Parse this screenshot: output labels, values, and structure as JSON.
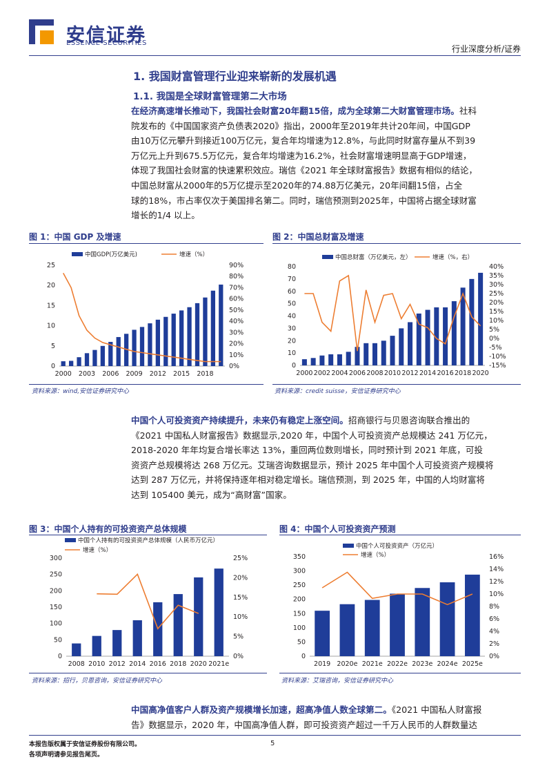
{
  "header": {
    "logo_cn": "安信证券",
    "logo_en": "ESSENCE SECURITIES",
    "report_type": "行业深度分析/证券"
  },
  "section": {
    "h1": "1. 我国财富管理行业迎来崭新的发展机遇",
    "h2": "1.1. 我国是全球财富管理第二大市场"
  },
  "para1": {
    "lead": "在经济高速增长推动下，我国社会财富20年翻15倍，成为全球第二大财富管理市场。",
    "lines": [
      "社科",
      "院发布的《中国国家资产负债表2020》指出，2000年至2019年共计20年间，中国GDP",
      "由10万亿元攀升到接近100万亿元，复合年均增速为12.8%，与此同时财富存量从不到39",
      "万亿元上升到675.5万亿元，复合年均增速为16.2%，社会财富增速明显高于GDP增速，",
      "体现了我国社会财富的快速累积效应。瑞信《2021 年全球财富报告》数据有相似的结论，",
      "中国总财富从2000年的5万亿提示至2020年的74.88万亿美元，20年间翻15倍，占全",
      "球的18%，市占率仅次于美国排名第二。同时，瑞信预测到2025年，中国将占据全球财富",
      "增长的1/4 以上。"
    ]
  },
  "fig1": {
    "title": "图 1：中国 GDP 及增速",
    "source": "资料来源：wind,安信证券研究中心",
    "chart_data": {
      "type": "bar",
      "x": [
        2000,
        2001,
        2002,
        2003,
        2004,
        2005,
        2006,
        2007,
        2008,
        2009,
        2010,
        2011,
        2012,
        2013,
        2014,
        2015,
        2016,
        2017,
        2018,
        2019,
        2020
      ],
      "series": [
        {
          "name": "中国GDP(万亿美元)",
          "values": [
            1.2,
            1.3,
            2.2,
            3.2,
            4.0,
            5.0,
            6.0,
            7.2,
            8.0,
            9.0,
            9.7,
            10.6,
            11.5,
            12.2,
            13.0,
            13.8,
            14.6,
            15.6,
            17.0,
            18.7,
            20.2
          ]
        },
        {
          "name": "增速（%）",
          "values": [
            83,
            70,
            45,
            32,
            25,
            21,
            19,
            17,
            15,
            13,
            12,
            11,
            10,
            9,
            8,
            7,
            6,
            5,
            4,
            4,
            4
          ]
        }
      ],
      "ylim_left": [
        0,
        25
      ],
      "ylim_right": [
        0,
        90
      ],
      "yticks_left": [
        "0",
        "5",
        "10",
        "15",
        "20",
        "25"
      ],
      "yticks_right": [
        "0%",
        "10%",
        "20%",
        "30%",
        "40%",
        "50%",
        "60%",
        "70%",
        "80%",
        "90%"
      ],
      "xticks": [
        "2000",
        "2003",
        "2006",
        "2009",
        "2012",
        "2015",
        "2018"
      ],
      "legend": "top"
    }
  },
  "fig2": {
    "title": "图 2：中国总财富及增速",
    "source": "资料来源：credit suisse，安信证券研究中心",
    "chart_data": {
      "type": "bar",
      "x": [
        2000,
        2001,
        2002,
        2003,
        2004,
        2005,
        2006,
        2007,
        2008,
        2009,
        2010,
        2011,
        2012,
        2013,
        2014,
        2015,
        2016,
        2017,
        2018,
        2019,
        2020
      ],
      "series": [
        {
          "name": "中国总财富（万亿美元，左）",
          "values": [
            5,
            6,
            8,
            9,
            9,
            11,
            15,
            18,
            18,
            20,
            24,
            30,
            35,
            42,
            45,
            47,
            47,
            52,
            63,
            70,
            75
          ]
        },
        {
          "name": "增速（%，右）",
          "values": [
            25,
            25,
            9,
            4,
            32,
            35,
            -7,
            27,
            9,
            24,
            25,
            11,
            19,
            8,
            6,
            0,
            -3,
            12,
            25,
            12,
            7
          ]
        }
      ],
      "ylim_left": [
        0,
        80
      ],
      "ylim_right": [
        -15,
        40
      ],
      "yticks_left": [
        "0",
        "10",
        "20",
        "30",
        "40",
        "50",
        "60",
        "70",
        "80"
      ],
      "yticks_right": [
        "-15%",
        "-10%",
        "-5%",
        "0%",
        "5%",
        "10%",
        "15%",
        "20%",
        "25%",
        "30%",
        "35%",
        "40%"
      ],
      "xticks": [
        "2000",
        "2002",
        "2004",
        "2006",
        "2008",
        "2010",
        "2012",
        "2014",
        "2016",
        "2018",
        "2020"
      ],
      "legend": "top"
    }
  },
  "para2": {
    "lead": "中国个人可投资资产持续提升，未来仍有稳定上涨空间。",
    "lines": [
      "招商银行与贝恩咨询联合推出的",
      "《2021 中国私人财富报告》数据显示,2020 年，中国个人可投资资产总规模达 241 万亿元，",
      "2018-2020 年年均复合增长率达 13%，重回两位数则增长，同时预计到 2021 年底，可投",
      "资资产总规模将达 268 万亿元。艾瑞咨询数据显示，预计 2025 年中国个人可投资资产规模将",
      "达到 287 万亿元，并将保持逐年相对稳定增长。瑞信预测，到 2025 年，中国的人均财富将",
      "达到 105400 美元，成为“高财富”国家。"
    ]
  },
  "fig3": {
    "title": "图 3：中国个人持有的可投资资产总体规模",
    "source": "资料来源：招行，贝恩咨询，安信证券研究中心",
    "chart_data": {
      "type": "bar",
      "categories": [
        "2008",
        "2010",
        "2012",
        "2014",
        "2016",
        "2018",
        "2020",
        "2021e"
      ],
      "series": [
        {
          "name": "中国个人持有的可投资资产总体规模（人民币万亿元）",
          "values": [
            39,
            62,
            80,
            110,
            165,
            190,
            241,
            268
          ]
        },
        {
          "name": "增速（%）",
          "values": [
            null,
            15.9,
            15.8,
            20.9,
            7.0,
            13.0,
            10.9,
            null
          ]
        }
      ],
      "ylim_left": [
        0,
        300
      ],
      "ylim_right": [
        0,
        25
      ],
      "yticks_left": [
        "0",
        "50",
        "100",
        "150",
        "200",
        "250",
        "300"
      ],
      "yticks_right": [
        "0%",
        "5%",
        "10%",
        "15%",
        "20%",
        "25%"
      ],
      "legend": "top"
    }
  },
  "fig4": {
    "title": "图 4：中国个人可投资资产预测",
    "source": "资料来源：艾瑞咨询，安信证券研究中心",
    "chart_data": {
      "type": "bar",
      "categories": [
        "2019",
        "2020e",
        "2021e",
        "2022e",
        "2023e",
        "2024e",
        "2025e"
      ],
      "series": [
        {
          "name": "中国个人可投资资产（万亿元）",
          "values": [
            160,
            183,
            198,
            220,
            240,
            260,
            287
          ]
        },
        {
          "name": "增速（%）",
          "values": [
            11,
            13.5,
            9.3,
            10,
            10,
            8.3,
            10
          ]
        }
      ],
      "ylim_left": [
        0,
        350
      ],
      "ylim_right": [
        0,
        16
      ],
      "yticks_left": [
        "0",
        "50",
        "100",
        "150",
        "200",
        "250",
        "300",
        "350"
      ],
      "yticks_right": [
        "0%",
        "2%",
        "4%",
        "6%",
        "8%",
        "10%",
        "12%",
        "14%",
        "16%"
      ],
      "legend": "top"
    }
  },
  "para3": {
    "lead": "中国高净值客户人群及资产规模增长加速，超高净值人数全球第二。",
    "line1_rest": "《2021 中国私人财富报",
    "line2": "告》数据显示，2020 年，中国高净值人群，即可投资资产超过一千万人民币的人群数量达"
  },
  "footer": {
    "line1": "本报告版权属于安信证券股份有限公司。",
    "line2": "各项声明请参见报告尾页。",
    "page": "5"
  },
  "colors": {
    "brand": "#2f3d8c",
    "bar": "#1f3d99",
    "line": "#ed7d31",
    "logo_orange": "#f39800"
  }
}
